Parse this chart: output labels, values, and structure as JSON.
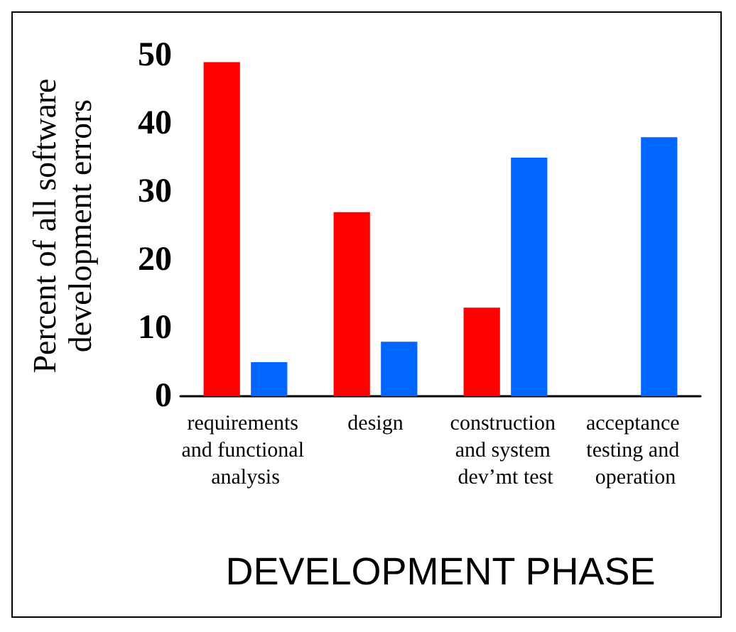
{
  "chart_data": {
    "type": "bar",
    "xlabel": "DEVELOPMENT PHASE",
    "ylabel": "Percent of all software development errors",
    "categories": [
      "requirements and functional analysis",
      "design",
      "construction and system dev’mt test",
      "acceptance testing and operation"
    ],
    "series": [
      {
        "color": "#ff0000",
        "values": [
          49,
          27,
          13,
          null
        ]
      },
      {
        "color": "#0066ff",
        "values": [
          5,
          8,
          35,
          38
        ]
      }
    ],
    "ylim": [
      0,
      50
    ],
    "yticks": [
      0,
      10,
      20,
      30,
      40,
      50
    ],
    "grid": false
  }
}
